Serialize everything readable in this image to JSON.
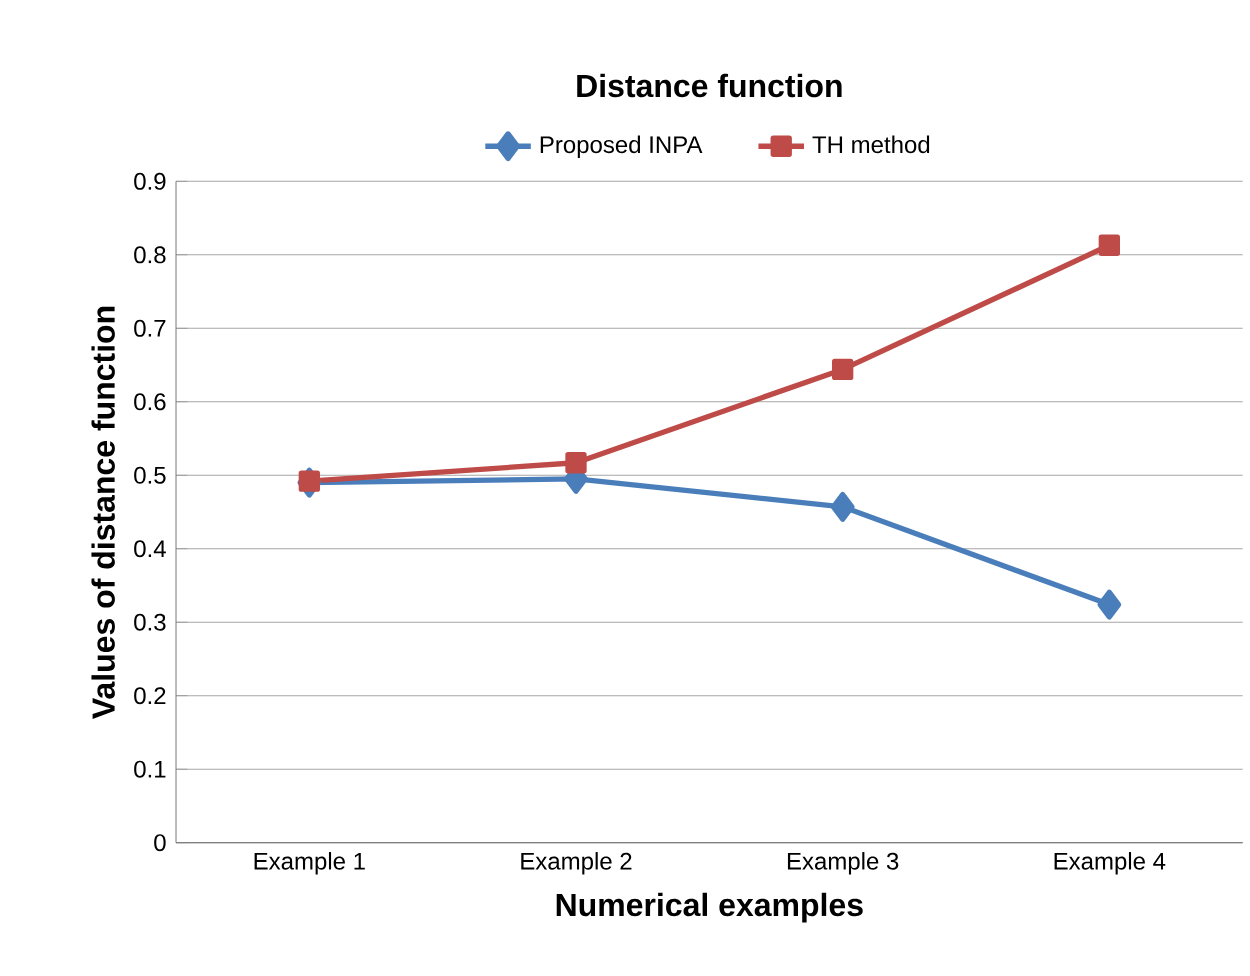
{
  "chart_data": {
    "type": "line",
    "title": "Distance function",
    "xlabel": "Numerical examples",
    "ylabel": "Values of distance function",
    "categories": [
      "Example 1",
      "Example 2",
      "Example 3",
      "Example 4"
    ],
    "series": [
      {
        "name": "Proposed INPA",
        "color": "#4a7ebb",
        "marker": "diamond",
        "values": [
          0.49,
          0.495,
          0.457,
          0.324
        ]
      },
      {
        "name": "TH method",
        "color": "#be4b48",
        "marker": "square",
        "values": [
          0.492,
          0.517,
          0.644,
          0.813
        ]
      }
    ],
    "ylim": [
      0,
      0.9
    ],
    "yticks": [
      0,
      0.1,
      0.2,
      0.3,
      0.4,
      0.5,
      0.6,
      0.7,
      0.8,
      0.9
    ],
    "grid": "y",
    "legend": "top"
  }
}
